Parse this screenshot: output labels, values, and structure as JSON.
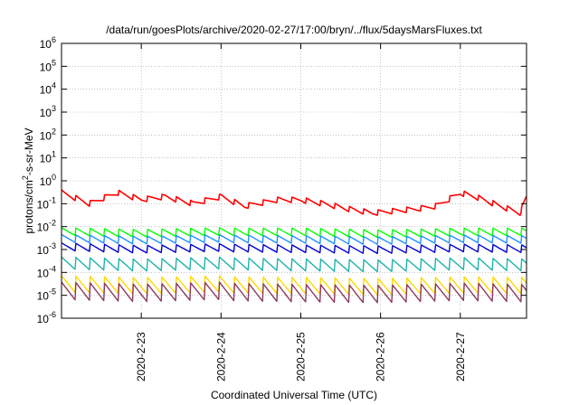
{
  "chart_data": {
    "type": "line",
    "title": "/data/run/goesPlots/archive/2020-02-27/17:00/bryn/../flux/5daysMarsFluxes.txt",
    "xlabel": "Coordinated Universal Time (UTC)",
    "ylabel": {
      "pre": "protons/cm",
      "sup": "2",
      "post": "-s-sr-MeV"
    },
    "x_ticks": [
      "2020-2-23",
      "2020-2-24",
      "2020-2-25",
      "2020-2-26",
      "2020-2-27"
    ],
    "x_tick_days": [
      1,
      2,
      3,
      4,
      5
    ],
    "xlim_days": [
      0,
      5.83
    ],
    "y_scale": "log",
    "ylim": [
      1e-06,
      1000000.0
    ],
    "y_tick_base": "10",
    "y_tick_exponents": [
      "-6",
      "-5",
      "-4",
      "-3",
      "-2",
      "-1",
      "0",
      "1",
      "2",
      "3",
      "4",
      "5",
      "6"
    ],
    "grid": true,
    "sawtooth_period_days": 0.18,
    "series": [
      {
        "color": "#ff0000",
        "x_days": [
          0,
          0.35,
          0.7,
          1.0,
          1.3,
          1.65,
          2.0,
          2.3,
          2.7,
          3.0,
          3.3,
          3.6,
          3.9,
          4.2,
          4.45,
          4.7,
          5.0,
          5.2,
          5.5,
          5.75,
          5.83
        ],
        "y": [
          0.3,
          0.1,
          0.3,
          0.15,
          0.2,
          0.1,
          0.2,
          0.08,
          0.15,
          0.15,
          0.1,
          0.06,
          0.04,
          0.05,
          0.06,
          0.08,
          0.3,
          0.2,
          0.08,
          0.04,
          0.2
        ]
      },
      {
        "color": "#00ff00",
        "x_days": [
          0,
          1.0,
          2.0,
          3.0,
          4.0,
          5.0,
          5.83
        ],
        "y": [
          0.006,
          0.005,
          0.006,
          0.006,
          0.005,
          0.006,
          0.006
        ]
      },
      {
        "color": "#1e90ff",
        "x_days": [
          0,
          1.0,
          2.0,
          3.0,
          4.0,
          5.0,
          5.83
        ],
        "y": [
          0.003,
          0.0025,
          0.003,
          0.0028,
          0.0025,
          0.003,
          0.0028
        ]
      },
      {
        "color": "#0000cd",
        "x_days": [
          0,
          1.0,
          2.0,
          3.0,
          4.0,
          5.0,
          5.83
        ],
        "y": [
          0.0013,
          0.001,
          0.0012,
          0.0011,
          0.001,
          0.0012,
          0.0011
        ]
      },
      {
        "color": "#20b2aa",
        "x_days": [
          0,
          1.0,
          2.0,
          3.0,
          4.0,
          5.0,
          5.83
        ],
        "y": [
          0.00025,
          0.0002,
          0.00025,
          0.00022,
          0.0002,
          0.00025,
          0.00022
        ]
      },
      {
        "color": "#ffd700",
        "x_days": [
          0,
          1.0,
          2.0,
          3.0,
          4.0,
          5.0,
          5.83
        ],
        "y": [
          3e-05,
          2.5e-05,
          3e-05,
          2.8e-05,
          2.5e-05,
          3e-05,
          2.8e-05
        ]
      },
      {
        "color": "#8b3a62",
        "x_days": [
          0,
          1.0,
          2.0,
          3.0,
          4.0,
          5.0,
          5.83
        ],
        "y": [
          1.5e-05,
          1.2e-05,
          1.5e-05,
          1.3e-05,
          1.2e-05,
          1.5e-05,
          1.3e-05
        ]
      }
    ]
  }
}
